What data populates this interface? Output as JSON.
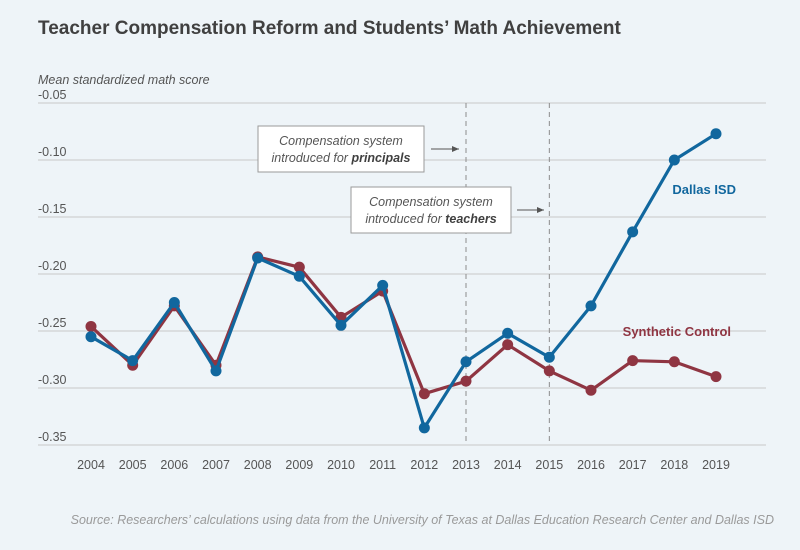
{
  "title": "Teacher Compensation Reform and Students’ Math Achievement",
  "source": "Source: Researchers’ calculations using data from the University of Texas at Dallas Education Research Center and Dallas ISD",
  "annotations": {
    "principals": {
      "line1": "Compensation system",
      "line2_prefix": "introduced for ",
      "line2_bold": "principals"
    },
    "teachers": {
      "line1": "Compensation system",
      "line2_prefix": "introduced for ",
      "line2_bold": "teachers"
    }
  },
  "colors": {
    "dallas": "#11679e",
    "synthetic": "#8f3542",
    "grid": "#c8c8c8",
    "text": "#555555"
  },
  "chart_data": {
    "type": "line",
    "title": "Teacher Compensation Reform and Students’ Math Achievement",
    "ylabel": "Mean standardized math score",
    "xlabel": "",
    "categories": [
      "2004",
      "2005",
      "2006",
      "2007",
      "2008",
      "2009",
      "2010",
      "2011",
      "2012",
      "2013",
      "2014",
      "2015",
      "2016",
      "2017",
      "2018",
      "2019"
    ],
    "ylim": [
      -0.35,
      -0.05
    ],
    "yticks": [
      -0.05,
      -0.1,
      -0.15,
      -0.2,
      -0.25,
      -0.3,
      -0.35
    ],
    "ytick_labels": [
      "-0.05",
      "-0.10",
      "-0.15",
      "-0.20",
      "-0.25",
      "-0.30",
      "-0.35"
    ],
    "vlines": [
      "2013",
      "2015"
    ],
    "grid": true,
    "series": [
      {
        "name": "Dallas ISD",
        "values": [
          -0.255,
          -0.276,
          -0.225,
          -0.285,
          -0.186,
          -0.202,
          -0.245,
          -0.21,
          -0.335,
          -0.277,
          -0.252,
          -0.273,
          -0.228,
          -0.163,
          -0.1,
          -0.077
        ]
      },
      {
        "name": "Synthetic Control",
        "values": [
          -0.246,
          -0.28,
          -0.228,
          -0.28,
          -0.185,
          -0.194,
          -0.238,
          -0.215,
          -0.305,
          -0.294,
          -0.262,
          -0.285,
          -0.302,
          -0.276,
          -0.277,
          -0.29
        ]
      }
    ]
  }
}
